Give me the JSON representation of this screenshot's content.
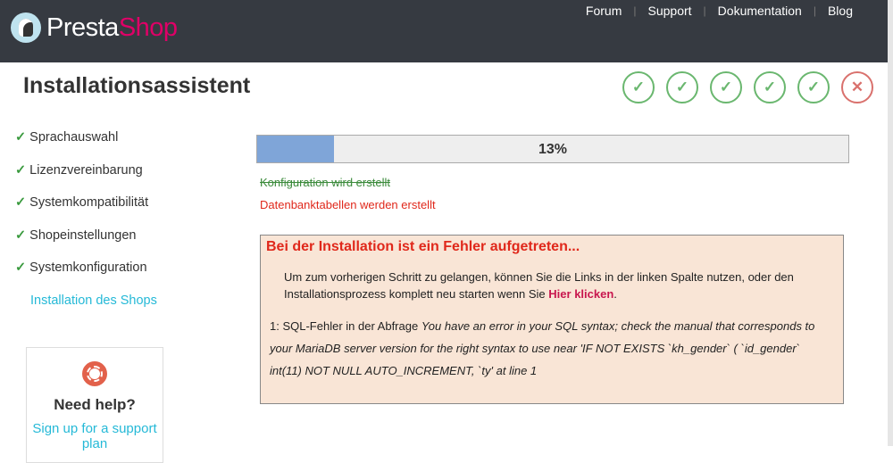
{
  "header": {
    "logo_a": "Presta",
    "logo_b": "Shop",
    "nav": [
      "Forum",
      "Support",
      "Dokumentation",
      "Blog"
    ]
  },
  "title": "Installationsassistent",
  "steps": [
    {
      "status": "done"
    },
    {
      "status": "done"
    },
    {
      "status": "done"
    },
    {
      "status": "done"
    },
    {
      "status": "done"
    },
    {
      "status": "error"
    }
  ],
  "sidebar": {
    "items": [
      {
        "label": "Sprachauswahl",
        "done": true
      },
      {
        "label": "Lizenzvereinbarung",
        "done": true
      },
      {
        "label": "Systemkompatibilität",
        "done": true
      },
      {
        "label": "Shopeinstellungen",
        "done": true
      },
      {
        "label": "Systemkonfiguration",
        "done": true
      },
      {
        "label": "Installation des Shops",
        "done": false
      }
    ]
  },
  "help": {
    "title": "Need help?",
    "link": "Sign up for a support plan"
  },
  "progress": {
    "percent": 13,
    "label": "13%"
  },
  "status": {
    "done": "Konfiguration wird erstellt",
    "current": "Datenbanktabellen werden erstellt"
  },
  "error": {
    "title": "Bei der Installation ist ein Fehler aufgetreten...",
    "text": "Um zum vorherigen Schritt zu gelangen, können Sie die Links in der linken Spalte nutzen, oder den Installationsprozess komplett neu starten wenn Sie",
    "link": "Hier klicken",
    "after": ".",
    "sql_prefix": "1: SQL-Fehler in der Abfrage",
    "sql_message": "You have an error in your SQL syntax; check the manual that corresponds to your MariaDB server version for the right syntax to use near 'IF NOT EXISTS `kh_gender` ( `id_gender` int(11) NOT NULL AUTO_INCREMENT, `ty' at line 1"
  }
}
